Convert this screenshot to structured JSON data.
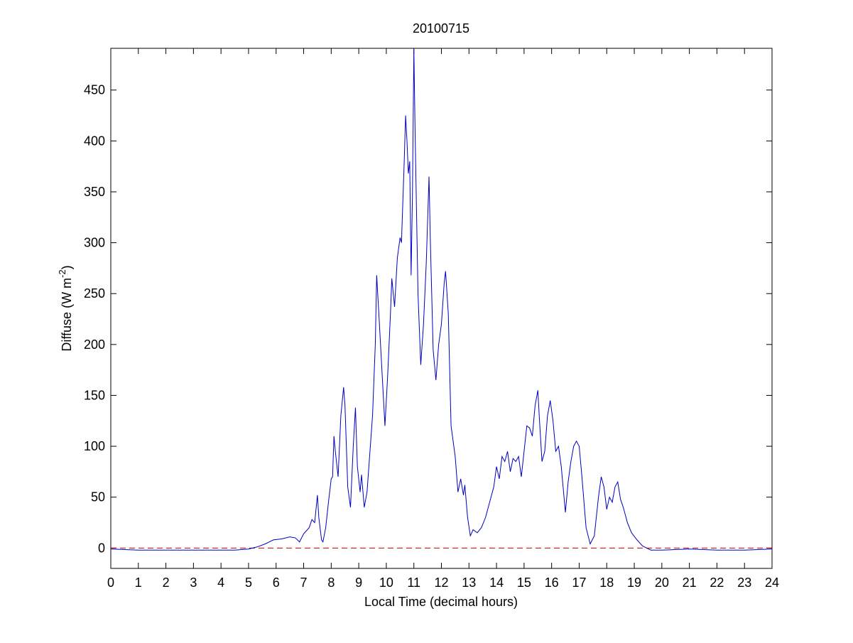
{
  "chart_data": {
    "type": "line",
    "title": "20100715",
    "xlabel": "Local Time (decimal hours)",
    "ylabel": [
      "Diffuse (W m",
      "-2",
      ")"
    ],
    "x": [
      0,
      1,
      2,
      3,
      4,
      4.5,
      5,
      5.3,
      5.6,
      5.9,
      6.2,
      6.5,
      6.7,
      6.85,
      7.0,
      7.2,
      7.3,
      7.4,
      7.5,
      7.55,
      7.65,
      7.7,
      7.8,
      7.9,
      8.0,
      8.05,
      8.1,
      8.15,
      8.25,
      8.35,
      8.45,
      8.5,
      8.6,
      8.7,
      8.8,
      8.88,
      8.95,
      9.05,
      9.1,
      9.2,
      9.3,
      9.5,
      9.6,
      9.65,
      9.75,
      9.85,
      9.95,
      10.05,
      10.15,
      10.2,
      10.3,
      10.4,
      10.5,
      10.55,
      10.65,
      10.7,
      10.75,
      10.8,
      10.85,
      10.9,
      10.95,
      11.0,
      11.05,
      11.15,
      11.25,
      11.35,
      11.45,
      11.55,
      11.6,
      11.7,
      11.8,
      11.9,
      12.0,
      12.1,
      12.15,
      12.25,
      12.35,
      12.5,
      12.6,
      12.7,
      12.8,
      12.85,
      12.95,
      13.05,
      13.15,
      13.3,
      13.45,
      13.6,
      13.75,
      13.9,
      14.0,
      14.1,
      14.2,
      14.3,
      14.4,
      14.5,
      14.6,
      14.7,
      14.8,
      14.9,
      15.0,
      15.1,
      15.2,
      15.3,
      15.4,
      15.5,
      15.55,
      15.65,
      15.75,
      15.85,
      15.95,
      16.05,
      16.15,
      16.25,
      16.35,
      16.5,
      16.6,
      16.7,
      16.8,
      16.9,
      17.0,
      17.1,
      17.25,
      17.4,
      17.55,
      17.7,
      17.8,
      17.9,
      18.0,
      18.1,
      18.2,
      18.3,
      18.4,
      18.5,
      18.6,
      18.75,
      18.9,
      19.1,
      19.3,
      19.6,
      20,
      21,
      22,
      23,
      24
    ],
    "series": [
      {
        "name": "Diffuse",
        "color": "#0000c0",
        "values": [
          -1,
          -2,
          -2,
          -2,
          -2,
          -2,
          -1,
          1,
          4,
          8,
          9,
          11,
          10,
          6,
          14,
          20,
          28,
          25,
          52,
          30,
          8,
          6,
          20,
          45,
          68,
          70,
          110,
          95,
          70,
          130,
          158,
          140,
          60,
          40,
          100,
          138,
          80,
          55,
          72,
          40,
          55,
          130,
          200,
          268,
          220,
          170,
          120,
          170,
          230,
          265,
          237,
          285,
          305,
          300,
          380,
          425,
          400,
          368,
          380,
          268,
          350,
          490,
          400,
          250,
          180,
          220,
          280,
          365,
          300,
          195,
          165,
          200,
          220,
          260,
          272,
          230,
          120,
          90,
          55,
          68,
          52,
          62,
          30,
          12,
          18,
          15,
          20,
          30,
          45,
          60,
          80,
          68,
          90,
          85,
          95,
          75,
          88,
          85,
          90,
          70,
          95,
          120,
          118,
          110,
          140,
          155,
          130,
          85,
          95,
          130,
          145,
          125,
          95,
          100,
          80,
          35,
          65,
          85,
          100,
          105,
          100,
          70,
          20,
          4,
          12,
          50,
          70,
          60,
          38,
          50,
          45,
          60,
          65,
          48,
          40,
          25,
          15,
          8,
          2,
          -2,
          -2,
          -1,
          -2,
          -2,
          -1
        ]
      }
    ],
    "hline": {
      "value": 0,
      "color": "#c00000",
      "dashed": true
    },
    "xlim": [
      0,
      24
    ],
    "xticks": [
      0,
      1,
      2,
      3,
      4,
      5,
      6,
      7,
      8,
      9,
      10,
      11,
      12,
      13,
      14,
      15,
      16,
      17,
      18,
      19,
      20,
      21,
      22,
      23,
      24
    ],
    "ylim": [
      -20,
      491
    ],
    "yticks": [
      0,
      50,
      100,
      150,
      200,
      250,
      300,
      350,
      400,
      450
    ],
    "grid": false
  }
}
